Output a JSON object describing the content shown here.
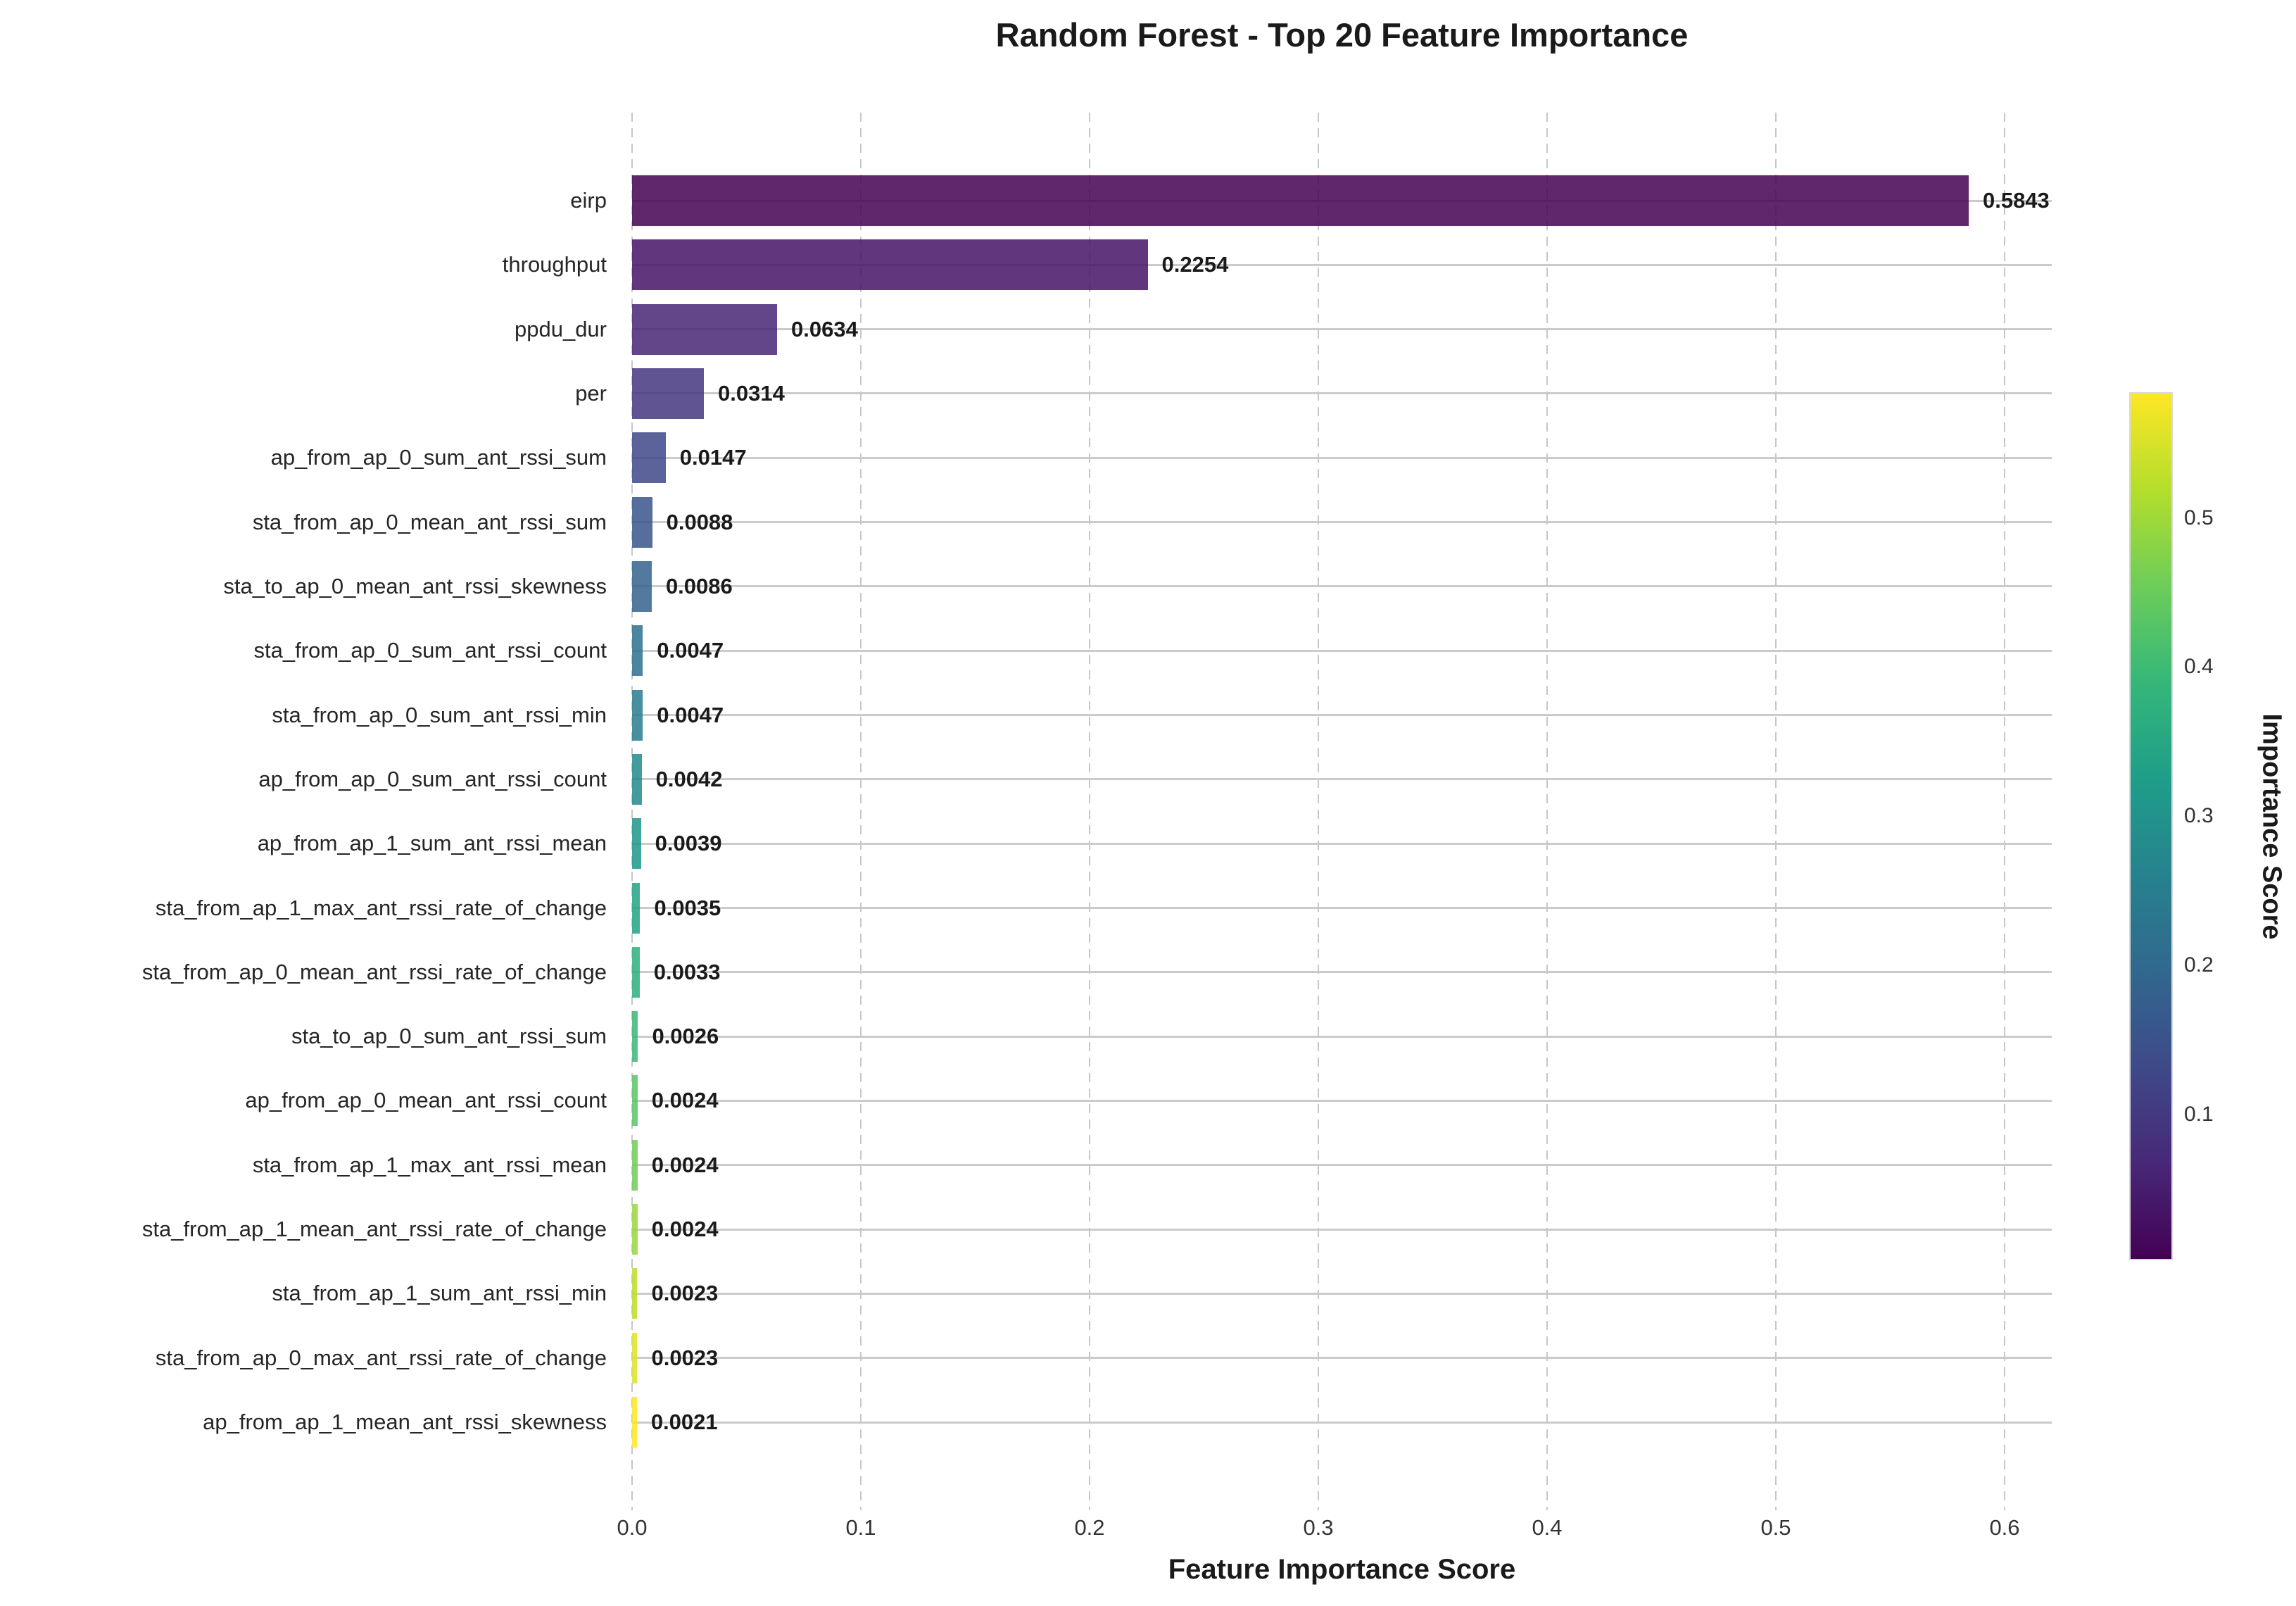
{
  "title": "Random Forest - Top 20 Feature Importance",
  "x_axis": {
    "label": "Feature Importance Score",
    "tick_labels": [
      "0.0",
      "0.1",
      "0.2",
      "0.3",
      "0.4",
      "0.5",
      "0.6"
    ]
  },
  "colorbar": {
    "label": "Importance Score",
    "tick_labels": [
      "0.5",
      "0.4",
      "0.3",
      "0.2",
      "0.1"
    ],
    "tick_values": [
      0.5,
      0.4,
      0.3,
      0.2,
      0.1
    ],
    "range_min": 0.0021,
    "range_max": 0.5843,
    "colormap": "viridis",
    "gradient_stops_bottom_to_top": [
      "#440154",
      "#482878",
      "#3E4A89",
      "#31688E",
      "#26828E",
      "#1F9E89",
      "#35B779",
      "#6DCD59",
      "#B4DE2C",
      "#FDE725"
    ]
  },
  "chart_data": {
    "type": "bar",
    "orientation": "horizontal",
    "title": "Random Forest - Top 20 Feature Importance",
    "xlabel": "Feature Importance Score",
    "ylabel": "",
    "xlim": [
      0,
      0.62
    ],
    "x_ticks": [
      0.0,
      0.1,
      0.2,
      0.3,
      0.4,
      0.5,
      0.6
    ],
    "grid": {
      "vertical": "dashed",
      "horizontal": "solid"
    },
    "legend_position": "colorbar-right",
    "categories": [
      "eirp",
      "throughput",
      "ppdu_dur",
      "per",
      "ap_from_ap_0_sum_ant_rssi_sum",
      "sta_from_ap_0_mean_ant_rssi_sum",
      "sta_to_ap_0_mean_ant_rssi_skewness",
      "sta_from_ap_0_sum_ant_rssi_count",
      "sta_from_ap_0_sum_ant_rssi_min",
      "ap_from_ap_0_sum_ant_rssi_count",
      "ap_from_ap_1_sum_ant_rssi_mean",
      "sta_from_ap_1_max_ant_rssi_rate_of_change",
      "sta_from_ap_0_mean_ant_rssi_rate_of_change",
      "sta_to_ap_0_sum_ant_rssi_sum",
      "ap_from_ap_0_mean_ant_rssi_count",
      "sta_from_ap_1_max_ant_rssi_mean",
      "sta_from_ap_1_mean_ant_rssi_rate_of_change",
      "sta_from_ap_1_sum_ant_rssi_min",
      "sta_from_ap_0_max_ant_rssi_rate_of_change",
      "ap_from_ap_1_mean_ant_rssi_skewness"
    ],
    "values": [
      0.5843,
      0.2254,
      0.0634,
      0.0314,
      0.0147,
      0.0088,
      0.0086,
      0.0047,
      0.0047,
      0.0042,
      0.0039,
      0.0035,
      0.0033,
      0.0026,
      0.0024,
      0.0024,
      0.0024,
      0.0023,
      0.0023,
      0.0021
    ],
    "value_labels": [
      "0.5843",
      "0.2254",
      "0.0634",
      "0.0314",
      "0.0147",
      "0.0088",
      "0.0086",
      "0.0047",
      "0.0047",
      "0.0042",
      "0.0039",
      "0.0035",
      "0.0033",
      "0.0026",
      "0.0024",
      "0.0024",
      "0.0024",
      "0.0023",
      "0.0023",
      "0.0021"
    ],
    "bar_colors": [
      "#440154",
      "#461365",
      "#482676",
      "#44367F",
      "#3F4688",
      "#39558B",
      "#33638D",
      "#2D708E",
      "#287D8E",
      "#238A8D",
      "#1F978B",
      "#22A386",
      "#2DAF7E",
      "#39B877",
      "#58C665",
      "#6ECE58",
      "#96D73F",
      "#BADE28",
      "#DCE325",
      "#FDE725"
    ],
    "bar_alpha": 0.85
  }
}
